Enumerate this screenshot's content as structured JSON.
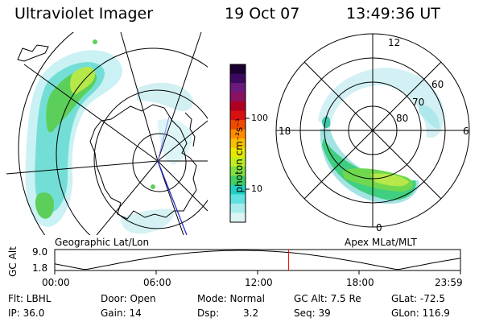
{
  "header": {
    "instrument": "Ultraviolet Imager",
    "date": "19 Oct 07",
    "time": "13:49:36 UT"
  },
  "colorbar": {
    "unit": "photon cm⁻²s⁻¹",
    "ticks": [
      "100",
      "10"
    ],
    "colors": [
      "#1a0030",
      "#3b0a5e",
      "#6a1a7a",
      "#8a1060",
      "#b00020",
      "#d81010",
      "#f04a00",
      "#ff8c00",
      "#f8c000",
      "#e8e800",
      "#c0ee20",
      "#80e040",
      "#40d060",
      "#20d0c0",
      "#60e0e0",
      "#a8ecec",
      "#dcf4f4"
    ]
  },
  "left_map": {
    "label": "Geographic Lat/Lon"
  },
  "right_map": {
    "label": "Apex MLat/MLT",
    "hours": {
      "top": "12",
      "left": "18",
      "right": "6",
      "bottom": "0"
    },
    "lats": [
      "80",
      "70",
      "60"
    ]
  },
  "gc_plot": {
    "ylabel": "GC Alt",
    "ymax": "9.0",
    "ymin": "1.8",
    "xticks": [
      "00:00",
      "06:00",
      "12:00",
      "18:00",
      "23:59"
    ],
    "marker_time_hours": 13.83,
    "marker_color": "#ff0000"
  },
  "info": {
    "filter": "Flt: LBHL",
    "ip": "IP: 36.0",
    "door": "Door: Open",
    "gain": "Gain: 14",
    "mode": "Mode: Normal",
    "dsp_label": "Dsp:",
    "dsp_value": "3.2",
    "gc_alt": "GC Alt: 7.5 Re",
    "seq": "Seq: 39",
    "glat": "GLat: -72.5",
    "glon": "GLon: 116.9"
  }
}
